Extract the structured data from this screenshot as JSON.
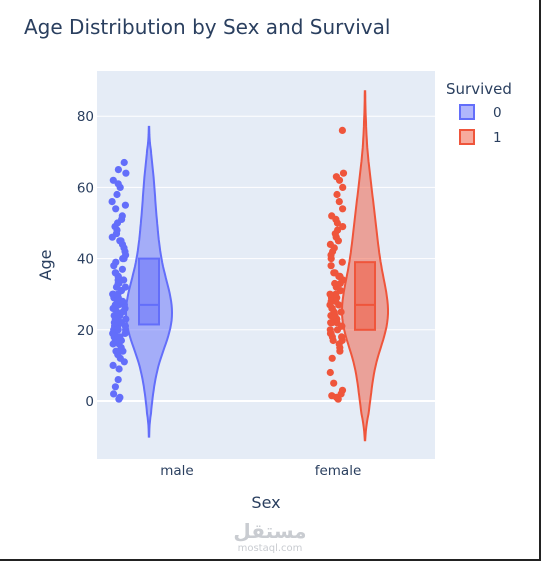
{
  "chart_data": {
    "type": "violin",
    "title": "Age Distribution by Sex and Survival",
    "xlabel": "Sex",
    "ylabel": "Age",
    "categories": [
      "male",
      "female"
    ],
    "ylim": [
      -14,
      92
    ],
    "yticks": [
      0,
      20,
      40,
      60,
      80
    ],
    "grid": true,
    "legend_title": "Survived",
    "legend_position": "top-right",
    "series": [
      {
        "name": "0",
        "category": "male",
        "color": "#636efa",
        "fill": "rgba(99,110,250,0.5)",
        "violin_range": [
          -10,
          77
        ],
        "box": {
          "q1": 21.5,
          "median": 27,
          "q3": 40
        },
        "points": [
          0.5,
          1,
          2,
          4,
          6,
          9,
          10,
          11,
          12,
          13,
          14,
          14,
          15,
          16,
          16,
          17,
          17,
          18,
          18,
          18,
          19,
          19,
          19,
          20,
          20,
          20,
          21,
          21,
          21,
          22,
          22,
          22,
          22,
          23,
          23,
          23,
          24,
          24,
          24,
          25,
          25,
          25,
          26,
          26,
          26,
          27,
          27,
          27,
          28,
          28,
          28,
          28,
          29,
          29,
          29,
          30,
          30,
          30,
          31,
          31,
          32,
          32,
          33,
          33,
          34,
          34,
          35,
          35,
          36,
          36,
          37,
          38,
          39,
          40,
          40,
          41,
          42,
          43,
          44,
          45,
          45,
          46,
          47,
          48,
          49,
          50,
          51,
          52,
          54,
          55,
          56,
          58,
          60,
          61,
          62,
          64,
          65,
          67
        ]
      },
      {
        "name": "1",
        "category": "female",
        "color": "#ef553b",
        "fill": "rgba(239,85,59,0.5)",
        "violin_range": [
          -11,
          87
        ],
        "box": {
          "q1": 20,
          "median": 27,
          "q3": 39
        },
        "points": [
          0.5,
          1,
          1.5,
          2,
          3,
          5,
          8,
          12,
          14,
          15,
          16,
          17,
          17,
          18,
          18,
          19,
          19,
          20,
          20,
          21,
          21,
          22,
          22,
          22,
          23,
          23,
          24,
          24,
          24,
          25,
          25,
          26,
          26,
          27,
          27,
          28,
          28,
          29,
          29,
          30,
          30,
          31,
          32,
          33,
          33,
          34,
          35,
          35,
          36,
          36,
          38,
          39,
          40,
          41,
          42,
          43,
          44,
          45,
          46,
          47,
          48,
          49,
          50,
          51,
          52,
          54,
          56,
          58,
          60,
          62,
          63,
          64,
          76
        ]
      }
    ]
  },
  "watermark": {
    "main": "مستقل",
    "sub": "mostaql.com"
  }
}
